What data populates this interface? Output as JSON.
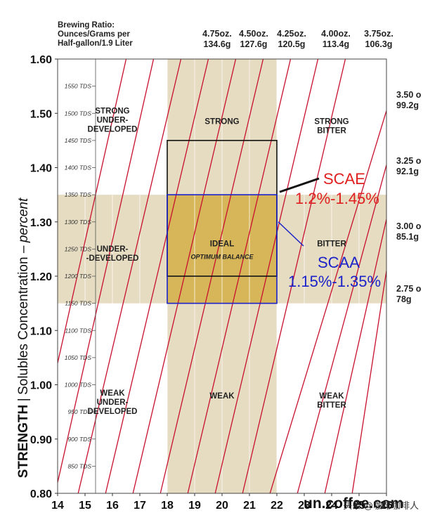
{
  "header": {
    "ratio_title_lines": [
      "Brewing Ratio:",
      "Ounces/Grams per",
      "Half-gallon/1.9 Liter"
    ],
    "top_ratios": [
      {
        "oz": "4.75oz.",
        "g": "134.6g"
      },
      {
        "oz": "4.50oz.",
        "g": "127.6g"
      },
      {
        "oz": "4.25oz.",
        "g": "120.5g"
      },
      {
        "oz": "4.00oz.",
        "g": "113.4g"
      },
      {
        "oz": "3.75oz.",
        "g": "106.3g"
      }
    ],
    "side_ratios": [
      {
        "oz": "3.50 o",
        "g": "99.2g"
      },
      {
        "oz": "3.25 o",
        "g": "92.1g"
      },
      {
        "oz": "3.00 o",
        "g": "85.1g"
      },
      {
        "oz": "2.75 o",
        "g": "78g"
      }
    ]
  },
  "y_axis_label": {
    "strength": "STRENGTH",
    "separator": "|",
    "soluble": "Solubles Concentration –",
    "unit": "percent"
  },
  "watermark": {
    "text": "头条 @咖啡咖啡人",
    "site": "un.coffee.com"
  },
  "chart_data": {
    "type": "line",
    "xlim": [
      14,
      26
    ],
    "ylim": [
      0.8,
      1.6
    ],
    "x_ticks": [
      14,
      15,
      16,
      17,
      18,
      19,
      20,
      21,
      22,
      23,
      24,
      25,
      26
    ],
    "x_tick_labels": [
      "14",
      "15",
      "16",
      "17",
      "18",
      "19",
      "20",
      "21",
      "22",
      "23",
      "24",
      "25",
      "26"
    ],
    "y_ticks": [
      0.8,
      0.9,
      1.0,
      1.1,
      1.2,
      1.3,
      1.4,
      1.5,
      1.6
    ],
    "y_tick_labels": [
      "0.80",
      "0.90",
      "1.00",
      "1.10",
      "1.20",
      "1.30",
      "1.40",
      "1.50",
      "1.60"
    ],
    "tds_ticks": [
      850,
      900,
      950,
      1000,
      1050,
      1100,
      1150,
      1200,
      1250,
      1300,
      1350,
      1400,
      1450,
      1500,
      1550
    ],
    "tds_tick_labels": [
      "850 TDS",
      "900 TDS",
      "950 TDS",
      "1000 TDS",
      "1050 TDS",
      "1100 TDS",
      "1150 TDS",
      "1200 TDS",
      "1250 TDS",
      "1300 TDS",
      "1350 TDS",
      "1400 TDS",
      "1450 TDS",
      "1500 TDS",
      "1550 TDS"
    ],
    "grid": "vertical",
    "bands": [
      {
        "axis": "x",
        "from": 18,
        "to": 22,
        "color": "#e6dcc2"
      },
      {
        "axis": "y",
        "from": 1.15,
        "to": 1.35,
        "color": "#e6dcc2"
      }
    ],
    "ideal_box": {
      "x": [
        18,
        22
      ],
      "y": [
        1.15,
        1.35
      ],
      "fill": "#d7b65a"
    },
    "boxes": [
      {
        "name": "SCAE",
        "x": [
          18,
          22
        ],
        "y": [
          1.2,
          1.45
        ],
        "color": "#111111"
      },
      {
        "name": "SCAA",
        "x": [
          18,
          22
        ],
        "y": [
          1.15,
          1.35
        ],
        "color": "#1b22c8"
      }
    ],
    "ratio_lines": [
      {
        "oz": 4.75,
        "from": [
          16.75,
          0.8
        ],
        "to": [
          20.5,
          1.6
        ]
      },
      {
        "oz": 4.5,
        "from": [
          17.75,
          0.8
        ],
        "to": [
          21.5,
          1.6
        ]
      },
      {
        "oz": 4.25,
        "from": [
          18.75,
          0.8
        ],
        "to": [
          22.5,
          1.6
        ]
      },
      {
        "oz": 4.0,
        "from": [
          19.75,
          0.8
        ],
        "to": [
          23.5,
          1.6
        ]
      },
      {
        "oz": 3.75,
        "from": [
          20.75,
          0.8
        ],
        "to": [
          24.5,
          1.6
        ]
      },
      {
        "oz": 3.5,
        "from": [
          21.75,
          0.8
        ],
        "to": [
          26.0,
          1.505
        ]
      },
      {
        "oz": 3.25,
        "from": [
          22.75,
          0.8
        ],
        "to": [
          26.0,
          1.405
        ]
      },
      {
        "oz": 3.0,
        "from": [
          23.75,
          0.8
        ],
        "to": [
          26.0,
          1.305
        ]
      },
      {
        "oz": 2.75,
        "from": [
          24.75,
          0.8
        ],
        "to": [
          26.0,
          1.21
        ]
      },
      {
        "oz": 0,
        "from": [
          15.75,
          0.8
        ],
        "to": [
          19.5,
          1.6
        ]
      },
      {
        "oz": 0,
        "from": [
          14.75,
          0.8
        ],
        "to": [
          18.5,
          1.6
        ]
      },
      {
        "oz": 0,
        "from": [
          14.0,
          0.82
        ],
        "to": [
          17.5,
          1.6
        ]
      },
      {
        "oz": 0,
        "from": [
          14.0,
          1.04
        ],
        "to": [
          16.5,
          1.6
        ]
      }
    ],
    "region_labels": [
      {
        "lines": [
          "STRONG",
          "UNDER-",
          "DEVELOPED"
        ],
        "x": 16.0,
        "y": 1.5
      },
      {
        "lines": [
          "STRONG"
        ],
        "x": 20.0,
        "y": 1.48
      },
      {
        "lines": [
          "STRONG",
          "BITTER"
        ],
        "x": 24.0,
        "y": 1.48
      },
      {
        "lines": [
          "UNDER-",
          "-DEVELOPED"
        ],
        "x": 16.0,
        "y": 1.245
      },
      {
        "lines": [
          "IDEAL"
        ],
        "x": 20.0,
        "y": 1.255
      },
      {
        "lines": [
          "OPTIMUM BALANCE"
        ],
        "x": 20.0,
        "y": 1.232,
        "italic": true
      },
      {
        "lines": [
          "BITTER"
        ],
        "x": 24.0,
        "y": 1.255
      },
      {
        "lines": [
          "WEAK",
          "UNDER-",
          "DEVELOPED"
        ],
        "x": 16.0,
        "y": 0.98
      },
      {
        "lines": [
          "WEAK"
        ],
        "x": 20.0,
        "y": 0.975
      },
      {
        "lines": [
          "WEAK",
          "BITTER"
        ],
        "x": 24.0,
        "y": 0.975
      }
    ],
    "annotations": [
      {
        "name": "SCAE",
        "range": "1.2%-1.45%",
        "color": "#e02020"
      },
      {
        "name": "SCAA",
        "range": "1.15%-1.35%",
        "color": "#1b22c8"
      }
    ]
  }
}
